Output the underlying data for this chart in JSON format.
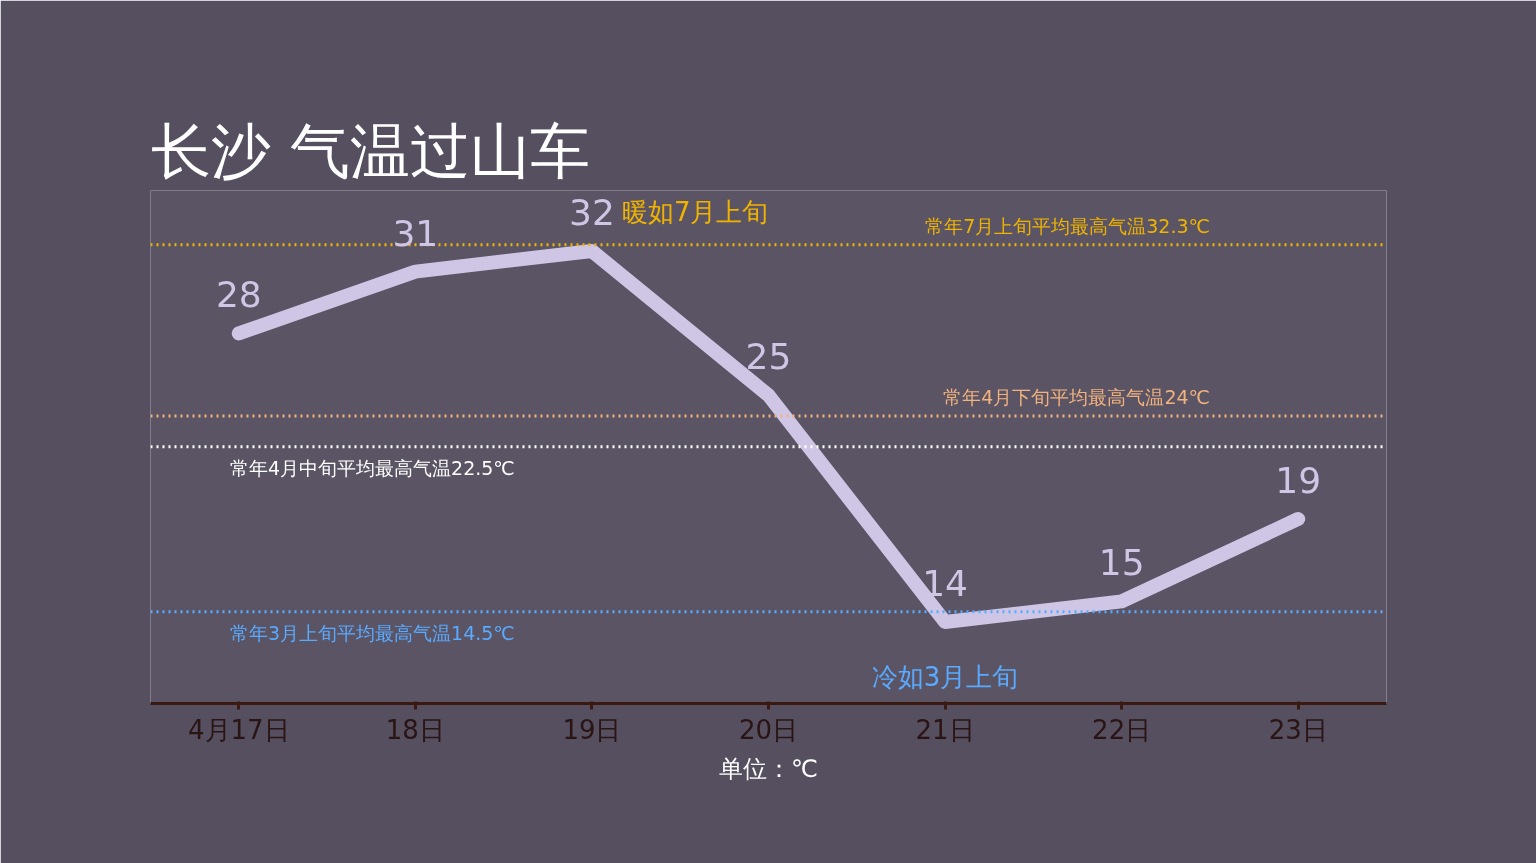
{
  "chart_data": {
    "type": "line",
    "title": "长沙  气温过山车",
    "categories": [
      "4月17日",
      "18日",
      "19日",
      "20日",
      "21日",
      "22日",
      "23日"
    ],
    "series": [
      {
        "color": "#cfc6e6",
        "values": [
          28,
          31,
          32,
          25,
          14,
          15,
          19
        ]
      }
    ],
    "data_labels": true,
    "grid": false,
    "marker": "none",
    "line_style": "solid",
    "tick_labels": "x",
    "ref_lines": [
      {
        "axis": "y",
        "value": 32.3,
        "label": "常年7月上旬平均最高气温32.3℃",
        "color": "#f0b400",
        "line_style": "dotted"
      },
      {
        "axis": "y",
        "value": 24,
        "label": "常年4月下旬平均最高气温24℃",
        "color": "#f2b27e",
        "line_style": "dotted"
      },
      {
        "axis": "y",
        "value": 22.5,
        "label": "常年4月中旬平均最高气温22.5℃",
        "color": "#ffffff",
        "line_style": "dotted"
      },
      {
        "axis": "y",
        "value": 14.5,
        "label": "常年3月上旬平均最高气温14.5℃",
        "color": "#5aaaff",
        "line_style": "dotted"
      }
    ],
    "annotations": [
      {
        "text": "暖如7月上旬",
        "x": "19日",
        "y": 32
      },
      {
        "text": "冷如3月上旬",
        "x": "21日",
        "y": 14
      },
      "单位：℃"
    ]
  }
}
